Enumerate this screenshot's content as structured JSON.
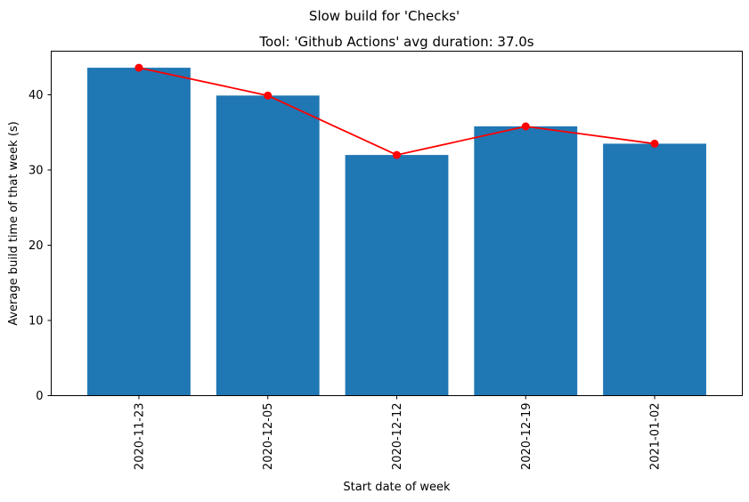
{
  "chart_data": {
    "type": "bar",
    "suptitle": "Slow build for 'Checks'",
    "title": "Tool: 'Github Actions' avg duration: 37.0s",
    "xlabel": "Start date of week",
    "ylabel": "Average build time of that week (s)",
    "categories": [
      "2020-11-23",
      "2020-12-05",
      "2020-12-12",
      "2020-12-19",
      "2021-01-02"
    ],
    "series": [
      {
        "type": "bar",
        "values": [
          43.6,
          39.9,
          32.0,
          35.8,
          33.5
        ],
        "color": "#1f77b4"
      },
      {
        "type": "line",
        "values": [
          43.6,
          39.9,
          32.0,
          35.8,
          33.5
        ],
        "color": "#ff0000",
        "marker": "circle"
      }
    ],
    "ylim": [
      0,
      45.8
    ],
    "yticks": [
      0,
      10,
      20,
      30,
      40
    ],
    "grid": false,
    "legend": "none",
    "xtick_rotation": 90
  }
}
